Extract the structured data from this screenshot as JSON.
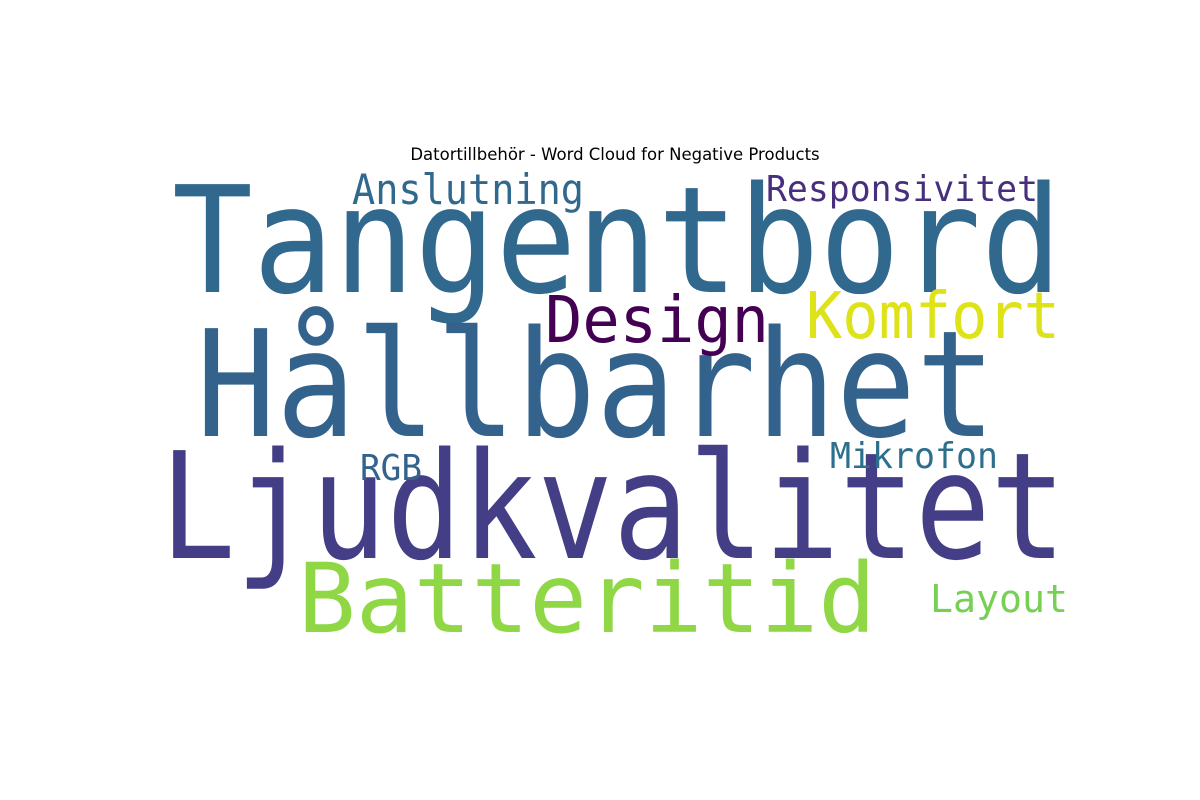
{
  "chart_data": {
    "type": "wordcloud",
    "title": "Datortillbehör - Word Cloud for Negative Products",
    "words": [
      {
        "text": "Tangentbord",
        "color": "#31688e"
      },
      {
        "text": "Hållbarhet",
        "color": "#33638d"
      },
      {
        "text": "Ljudkvalitet",
        "color": "#433e85"
      },
      {
        "text": "Batteritid",
        "color": "#8fd744"
      },
      {
        "text": "Design",
        "color": "#440154"
      },
      {
        "text": "Komfort",
        "color": "#dde318"
      },
      {
        "text": "Anslutning",
        "color": "#31688e"
      },
      {
        "text": "Responsivitet",
        "color": "#472f7d"
      },
      {
        "text": "Mikrofon",
        "color": "#2d708e"
      },
      {
        "text": "RGB",
        "color": "#33638d"
      },
      {
        "text": "Layout",
        "color": "#75d054"
      }
    ]
  }
}
